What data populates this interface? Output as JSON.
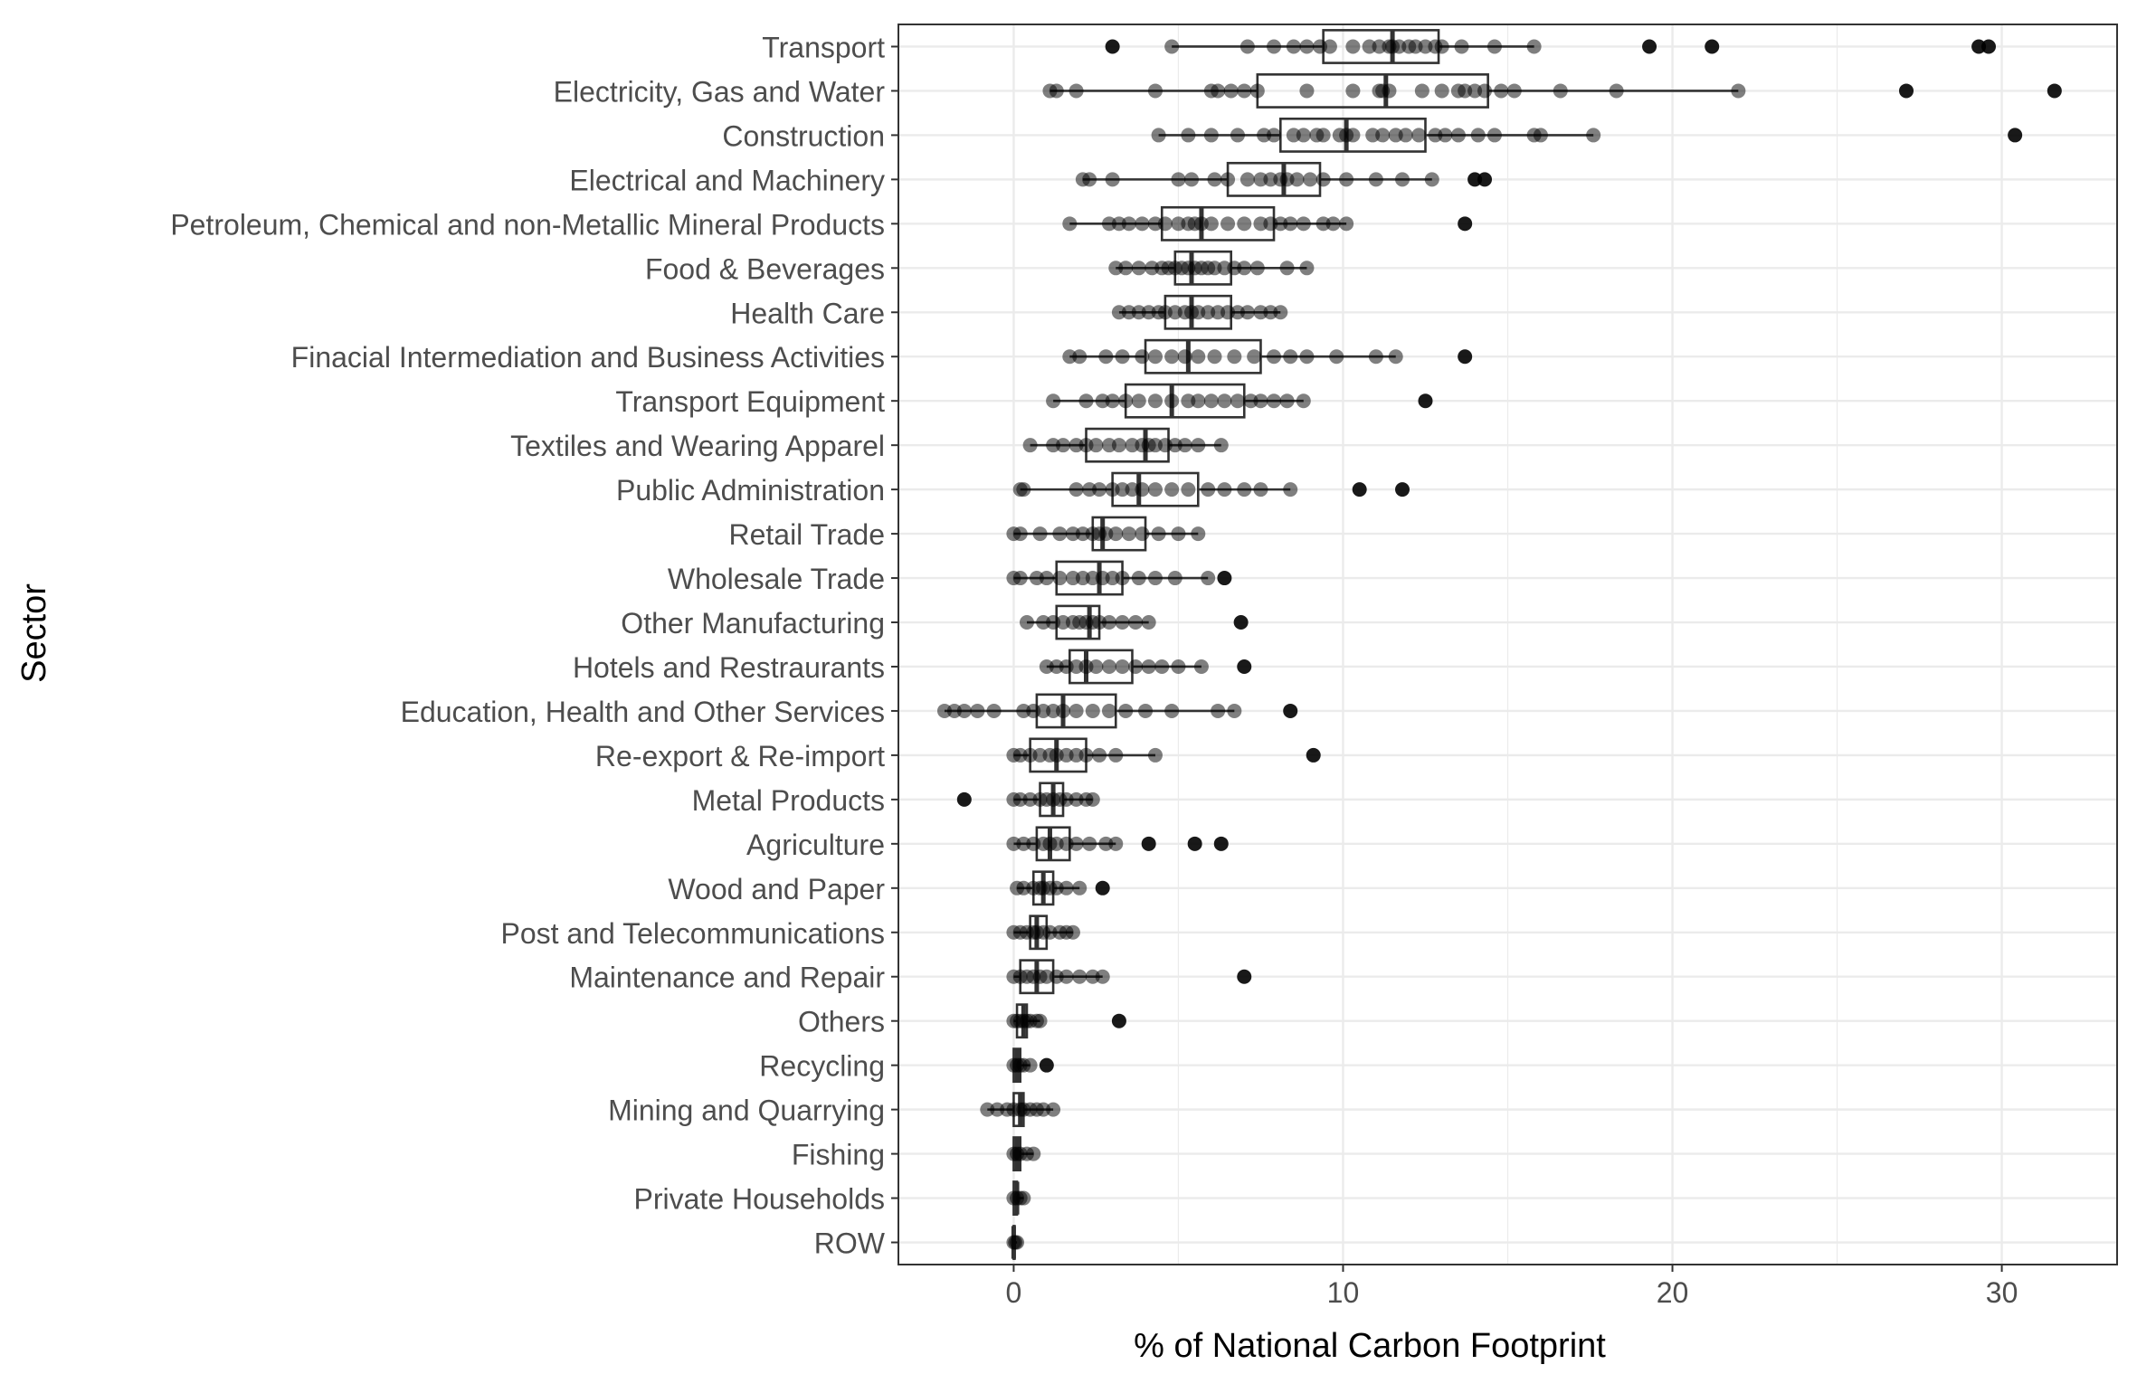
{
  "chart_data": {
    "type": "boxplot",
    "xlabel": "% of National Carbon Footprint",
    "ylabel": "Sector",
    "xlim": [
      -3.5,
      33.5
    ],
    "xticks": [
      0,
      10,
      20,
      30
    ],
    "grid": true,
    "colors": {
      "box": "#333333",
      "point": "#000000",
      "grid": "#ebebeb",
      "panel_border": "#333333"
    },
    "categories": [
      "Transport",
      "Electricity, Gas and Water",
      "Construction",
      "Electrical and Machinery",
      "Petroleum, Chemical and non-Metallic Mineral Products",
      "Food & Beverages",
      "Health Care",
      "Finacial Intermediation and Business Activities",
      "Transport Equipment",
      "Textiles and Wearing Apparel",
      "Public Administration",
      "Retail Trade",
      "Wholesale Trade",
      "Other Manufacturing",
      "Hotels and Restraurants",
      "Education, Health and Other Services",
      "Re-export & Re-import",
      "Metal Products",
      "Agriculture",
      "Wood and Paper",
      "Post and Telecommunications",
      "Maintenance and Repair",
      "Others",
      "Recycling",
      "Mining and Quarrying",
      "Fishing",
      "Private Households",
      "ROW"
    ],
    "boxes": [
      {
        "category": "Transport",
        "min": 4.8,
        "q1": 9.4,
        "median": 11.5,
        "q3": 12.9,
        "max": 15.8,
        "points": [
          3.0,
          4.8,
          7.1,
          7.9,
          8.5,
          8.9,
          9.3,
          9.6,
          10.3,
          10.8,
          11.1,
          11.4,
          11.5,
          11.7,
          12.0,
          12.2,
          12.5,
          12.8,
          13.0,
          13.6,
          14.6,
          15.8,
          19.3,
          21.2,
          29.3,
          29.6
        ]
      },
      {
        "category": "Electricity, Gas and Water",
        "min": 1.1,
        "q1": 7.4,
        "median": 11.3,
        "q3": 14.4,
        "max": 22.0,
        "points": [
          1.1,
          1.3,
          1.9,
          4.3,
          6.0,
          6.2,
          6.6,
          7.0,
          7.4,
          8.9,
          10.3,
          11.1,
          11.2,
          11.4,
          12.4,
          13.0,
          13.5,
          13.7,
          14.0,
          14.3,
          14.8,
          15.2,
          16.6,
          18.3,
          22.0,
          27.1,
          31.6
        ]
      },
      {
        "category": "Construction",
        "min": 4.4,
        "q1": 8.1,
        "median": 10.1,
        "q3": 12.5,
        "max": 17.6,
        "points": [
          4.4,
          5.3,
          6.0,
          6.8,
          7.6,
          7.9,
          8.5,
          8.8,
          9.2,
          9.4,
          9.9,
          10.1,
          10.3,
          10.9,
          11.2,
          11.6,
          11.9,
          12.3,
          12.8,
          13.1,
          13.5,
          14.1,
          14.6,
          15.8,
          16.0,
          17.6,
          30.4
        ]
      },
      {
        "category": "Electrical and Machinery",
        "min": 2.1,
        "q1": 6.5,
        "median": 8.2,
        "q3": 9.3,
        "max": 12.7,
        "points": [
          2.1,
          2.3,
          3.0,
          5.0,
          5.4,
          6.1,
          6.5,
          7.1,
          7.5,
          7.8,
          8.1,
          8.3,
          8.6,
          9.0,
          9.4,
          10.1,
          11.0,
          11.8,
          12.7,
          14.0,
          14.3
        ]
      },
      {
        "category": "Petroleum, Chemical and non-Metallic Mineral Products",
        "min": 1.7,
        "q1": 4.5,
        "median": 5.7,
        "q3": 7.9,
        "max": 10.1,
        "points": [
          1.7,
          2.9,
          3.2,
          3.5,
          3.9,
          4.3,
          4.6,
          5.0,
          5.3,
          5.5,
          5.7,
          6.0,
          6.5,
          7.0,
          7.5,
          7.8,
          8.1,
          8.4,
          8.8,
          9.4,
          9.7,
          10.1,
          13.7
        ]
      },
      {
        "category": "Food & Beverages",
        "min": 3.1,
        "q1": 4.9,
        "median": 5.4,
        "q3": 6.6,
        "max": 8.9,
        "points": [
          3.1,
          3.4,
          3.8,
          4.2,
          4.5,
          4.7,
          4.9,
          5.1,
          5.3,
          5.5,
          5.7,
          5.9,
          6.1,
          6.4,
          6.7,
          7.0,
          7.4,
          8.3,
          8.9
        ]
      },
      {
        "category": "Health Care",
        "min": 3.2,
        "q1": 4.6,
        "median": 5.4,
        "q3": 6.6,
        "max": 8.1,
        "points": [
          3.2,
          3.5,
          3.8,
          4.1,
          4.4,
          4.6,
          4.9,
          5.2,
          5.4,
          5.6,
          5.9,
          6.2,
          6.5,
          6.8,
          7.1,
          7.5,
          7.8,
          8.1
        ]
      },
      {
        "category": "Finacial Intermediation and Business Activities",
        "min": 1.7,
        "q1": 4.0,
        "median": 5.3,
        "q3": 7.5,
        "max": 11.6,
        "points": [
          1.7,
          2.0,
          2.8,
          3.3,
          3.9,
          4.3,
          4.8,
          5.2,
          5.6,
          6.1,
          6.7,
          7.3,
          7.9,
          8.4,
          8.9,
          9.8,
          11.0,
          11.6,
          13.7
        ]
      },
      {
        "category": "Transport Equipment",
        "min": 1.2,
        "q1": 3.4,
        "median": 4.8,
        "q3": 7.0,
        "max": 8.8,
        "points": [
          1.2,
          2.2,
          2.7,
          3.0,
          3.4,
          3.8,
          4.3,
          4.8,
          5.3,
          5.6,
          6.0,
          6.4,
          6.8,
          7.2,
          7.5,
          7.9,
          8.3,
          8.8,
          12.5
        ]
      },
      {
        "category": "Textiles and Wearing Apparel",
        "min": 0.5,
        "q1": 2.2,
        "median": 4.0,
        "q3": 4.7,
        "max": 6.3,
        "points": [
          0.5,
          1.2,
          1.5,
          1.9,
          2.2,
          2.5,
          2.9,
          3.2,
          3.6,
          3.9,
          4.1,
          4.3,
          4.6,
          4.9,
          5.2,
          5.6,
          6.3
        ]
      },
      {
        "category": "Public Administration",
        "min": 0.2,
        "q1": 3.0,
        "median": 3.8,
        "q3": 5.6,
        "max": 8.4,
        "points": [
          0.2,
          0.3,
          1.9,
          2.3,
          2.6,
          3.0,
          3.3,
          3.6,
          3.9,
          4.3,
          4.8,
          5.3,
          5.9,
          6.4,
          7.0,
          7.5,
          8.4,
          10.5,
          11.8
        ]
      },
      {
        "category": "Retail Trade",
        "min": 0.0,
        "q1": 2.4,
        "median": 2.7,
        "q3": 4.0,
        "max": 5.6,
        "points": [
          0.0,
          0.2,
          0.8,
          1.4,
          1.8,
          2.1,
          2.4,
          2.6,
          2.8,
          3.1,
          3.5,
          3.9,
          4.4,
          5.0,
          5.6
        ]
      },
      {
        "category": "Wholesale Trade",
        "min": 0.0,
        "q1": 1.3,
        "median": 2.6,
        "q3": 3.3,
        "max": 5.9,
        "points": [
          0.0,
          0.2,
          0.7,
          1.0,
          1.4,
          1.8,
          2.1,
          2.4,
          2.7,
          3.0,
          3.3,
          3.8,
          4.3,
          4.9,
          5.9,
          6.4
        ]
      },
      {
        "category": "Other Manufacturing",
        "min": 0.4,
        "q1": 1.3,
        "median": 2.3,
        "q3": 2.6,
        "max": 4.1,
        "points": [
          0.4,
          0.9,
          1.2,
          1.5,
          1.8,
          2.0,
          2.2,
          2.4,
          2.6,
          2.9,
          3.3,
          3.7,
          4.1,
          6.9
        ]
      },
      {
        "category": "Hotels and Restraurants",
        "min": 1.0,
        "q1": 1.7,
        "median": 2.2,
        "q3": 3.6,
        "max": 5.7,
        "points": [
          1.0,
          1.3,
          1.6,
          1.9,
          2.2,
          2.5,
          2.9,
          3.3,
          3.7,
          4.1,
          4.5,
          5.0,
          5.7,
          7.0
        ]
      },
      {
        "category": "Education, Health and Other Services",
        "min": -2.1,
        "q1": 0.7,
        "median": 1.5,
        "q3": 3.1,
        "max": 6.7,
        "points": [
          -2.1,
          -1.8,
          -1.5,
          -1.1,
          -0.6,
          0.3,
          0.6,
          0.9,
          1.2,
          1.5,
          1.9,
          2.4,
          2.9,
          3.4,
          4.0,
          4.8,
          6.2,
          6.7,
          8.4
        ]
      },
      {
        "category": "Re-export & Re-import",
        "min": 0.0,
        "q1": 0.5,
        "median": 1.3,
        "q3": 2.2,
        "max": 4.3,
        "points": [
          0.0,
          0.2,
          0.5,
          0.8,
          1.1,
          1.3,
          1.6,
          1.9,
          2.2,
          2.6,
          3.1,
          4.3,
          9.1
        ]
      },
      {
        "category": "Metal Products",
        "min": 0.0,
        "q1": 0.8,
        "median": 1.2,
        "q3": 1.5,
        "max": 2.4,
        "points": [
          -1.5,
          0.0,
          0.2,
          0.5,
          0.8,
          1.0,
          1.2,
          1.4,
          1.6,
          1.9,
          2.2,
          2.4
        ]
      },
      {
        "category": "Agriculture",
        "min": 0.0,
        "q1": 0.7,
        "median": 1.1,
        "q3": 1.7,
        "max": 3.1,
        "points": [
          0.0,
          0.3,
          0.6,
          0.9,
          1.1,
          1.3,
          1.6,
          1.9,
          2.3,
          2.8,
          3.1,
          4.1,
          5.5,
          6.3
        ]
      },
      {
        "category": "Wood and Paper",
        "min": 0.1,
        "q1": 0.6,
        "median": 0.9,
        "q3": 1.2,
        "max": 2.0,
        "points": [
          0.1,
          0.3,
          0.6,
          0.8,
          0.9,
          1.1,
          1.3,
          1.6,
          2.0,
          2.7
        ]
      },
      {
        "category": "Post and Telecommunications",
        "min": 0.0,
        "q1": 0.5,
        "median": 0.7,
        "q3": 1.0,
        "max": 1.8,
        "points": [
          0.0,
          0.2,
          0.4,
          0.6,
          0.7,
          0.9,
          1.1,
          1.4,
          1.6,
          1.8
        ]
      },
      {
        "category": "Maintenance and Repair",
        "min": 0.0,
        "q1": 0.2,
        "median": 0.7,
        "q3": 1.2,
        "max": 2.7,
        "points": [
          0.0,
          0.2,
          0.4,
          0.6,
          0.8,
          1.0,
          1.3,
          1.6,
          2.0,
          2.4,
          2.7,
          7.0
        ]
      },
      {
        "category": "Others",
        "min": 0.0,
        "q1": 0.1,
        "median": 0.3,
        "q3": 0.4,
        "max": 0.8,
        "points": [
          0.0,
          0.1,
          0.2,
          0.3,
          0.4,
          0.5,
          0.7,
          0.8,
          3.2
        ]
      },
      {
        "category": "Recycling",
        "min": 0.0,
        "q1": 0.0,
        "median": 0.1,
        "q3": 0.2,
        "max": 0.5,
        "points": [
          0.0,
          0.1,
          0.2,
          0.3,
          0.5,
          1.0
        ]
      },
      {
        "category": "Mining and Quarrying",
        "min": -0.8,
        "q1": 0.0,
        "median": 0.2,
        "q3": 0.3,
        "max": 1.2,
        "points": [
          -0.8,
          -0.5,
          -0.2,
          0.0,
          0.2,
          0.3,
          0.5,
          0.7,
          0.9,
          1.2
        ]
      },
      {
        "category": "Fishing",
        "min": 0.0,
        "q1": 0.0,
        "median": 0.1,
        "q3": 0.2,
        "max": 0.6,
        "points": [
          0.0,
          0.1,
          0.2,
          0.4,
          0.6
        ]
      },
      {
        "category": "Private Households",
        "min": 0.0,
        "q1": 0.0,
        "median": 0.1,
        "q3": 0.1,
        "max": 0.3,
        "points": [
          0.0,
          0.1,
          0.2,
          0.3
        ]
      },
      {
        "category": "ROW",
        "min": 0.0,
        "q1": 0.0,
        "median": 0.0,
        "q3": 0.0,
        "max": 0.1,
        "points": [
          0.0,
          0.05,
          0.1
        ]
      }
    ]
  }
}
